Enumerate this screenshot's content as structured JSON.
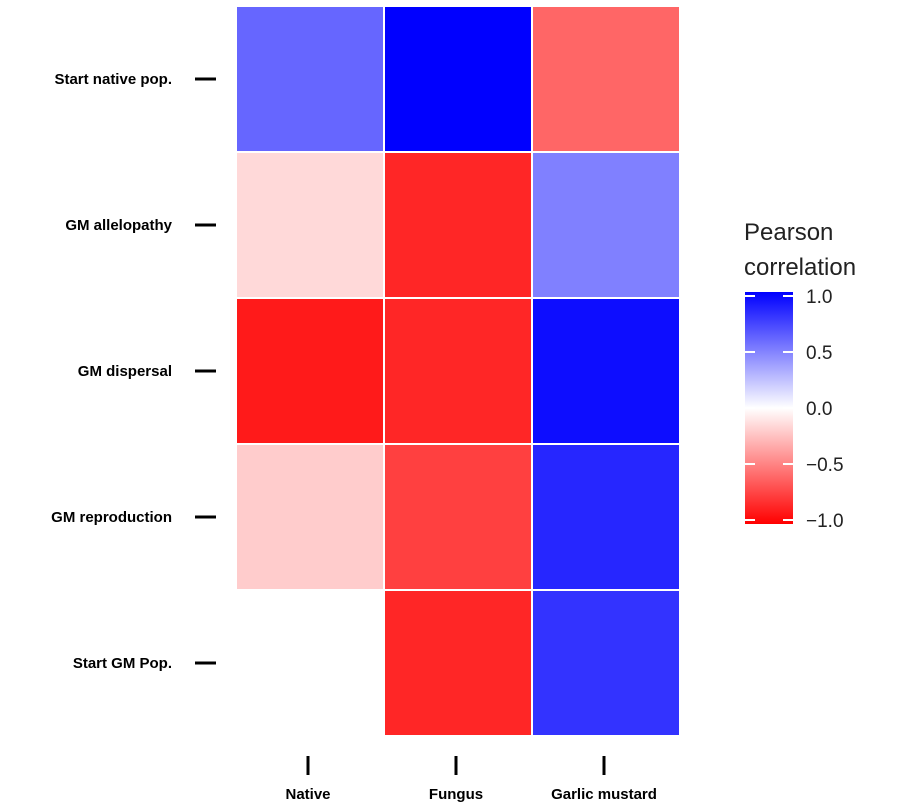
{
  "chart_data": {
    "type": "heatmap",
    "rows": [
      "Start native pop.",
      "GM allelopathy",
      "GM dispersal",
      "GM reproduction",
      "Start GM Pop."
    ],
    "columns": [
      "Native",
      "Fungus",
      "Garlic mustard"
    ],
    "values": [
      [
        0.6,
        1.0,
        -0.6
      ],
      [
        -0.15,
        -0.85,
        0.5
      ],
      [
        -0.9,
        -0.85,
        0.95
      ],
      [
        -0.2,
        -0.75,
        0.85
      ],
      [
        0.0,
        -0.85,
        0.8
      ]
    ],
    "legend": {
      "title_line1": "Pearson",
      "title_line2": "correlation",
      "ticks": [
        "1.0",
        "0.5",
        "0.0",
        "−0.5",
        "−1.0"
      ],
      "tick_values": [
        1.0,
        0.5,
        0.0,
        -0.5,
        -1.0
      ],
      "placement": "right"
    },
    "scale": {
      "min": -1.0,
      "max": 1.0,
      "low_color": "#ff0000",
      "mid_color": "#ffffff",
      "high_color": "#0000ff"
    },
    "grid": true
  }
}
